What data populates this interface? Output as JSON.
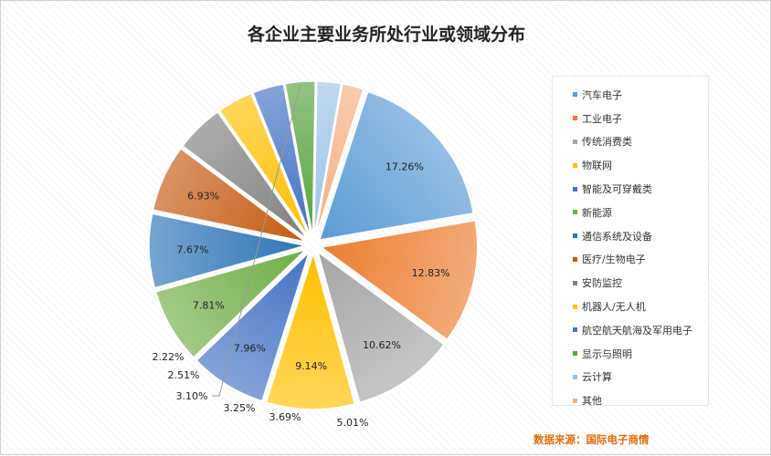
{
  "chart_data": {
    "type": "pie",
    "title": "各企业主要业务所处行业或领域分布",
    "legend_position": "right",
    "slices": [
      {
        "label": "汽车电子",
        "value": 17.26,
        "value_label": "17.26%",
        "color": "#5b9bd5"
      },
      {
        "label": "工业电子",
        "value": 12.83,
        "value_label": "12.83%",
        "color": "#ed7d31"
      },
      {
        "label": "传统消费类",
        "value": 10.62,
        "value_label": "10.62%",
        "color": "#a5a5a5"
      },
      {
        "label": "物联网",
        "value": 9.14,
        "value_label": "9.14%",
        "color": "#ffc000"
      },
      {
        "label": "智能及可穿戴类",
        "value": 7.96,
        "value_label": "7.96%",
        "color": "#4472c4"
      },
      {
        "label": "新能源",
        "value": 7.81,
        "value_label": "7.81%",
        "color": "#70ad47"
      },
      {
        "label": "通信系统及设备",
        "value": 7.67,
        "value_label": "7.67%",
        "color": "#2e75b6"
      },
      {
        "label": "医疗/生物电子",
        "value": 6.93,
        "value_label": "6.93%",
        "color": "#c55a11"
      },
      {
        "label": "安防监控",
        "value": 5.01,
        "value_label": "5.01%",
        "color": "#7f7f7f"
      },
      {
        "label": "机器人/无人机",
        "value": 3.69,
        "value_label": "3.69%",
        "color": "#ffc000"
      },
      {
        "label": "航空航天航海及军用电子",
        "value": 3.25,
        "value_label": "3.25%",
        "color": "#4472c4"
      },
      {
        "label": "显示与照明",
        "value": 3.1,
        "value_label": "3.10%",
        "color": "#5aa33f"
      },
      {
        "label": "云计算",
        "value": 2.51,
        "value_label": "2.51%",
        "color": "#9dc3e6"
      },
      {
        "label": "其他",
        "value": 2.22,
        "value_label": "2.22%",
        "color": "#f4b183"
      }
    ]
  },
  "source_text": "数据来源：国际电子商情"
}
